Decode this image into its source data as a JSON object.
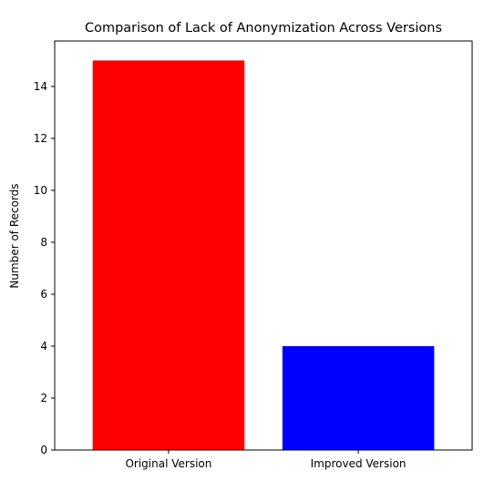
{
  "chart_data": {
    "type": "bar",
    "title": "Comparison of Lack of Anonymization Across Versions",
    "xlabel": "",
    "ylabel": "Number of Records",
    "categories": [
      "Original Version",
      "Improved Version"
    ],
    "values": [
      15,
      4
    ],
    "colors": [
      "#ff0000",
      "#0000ff"
    ],
    "ylim": [
      0,
      15.75
    ],
    "yticks": [
      0,
      2,
      4,
      6,
      8,
      10,
      12,
      14
    ],
    "grid": false,
    "legend": "none"
  }
}
